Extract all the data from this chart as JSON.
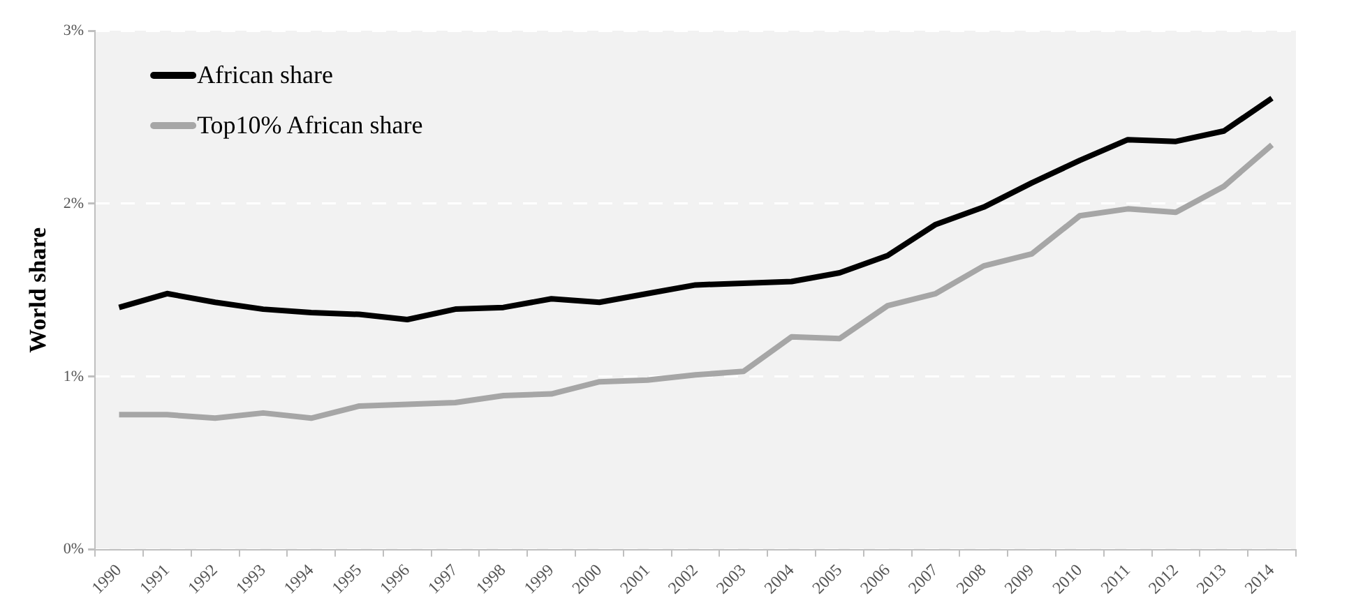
{
  "chart_data": {
    "type": "line",
    "ylabel": "World share",
    "categories": [
      "1990",
      "1991",
      "1992",
      "1993",
      "1994",
      "1995",
      "1996",
      "1997",
      "1998",
      "1999",
      "2000",
      "2001",
      "2002",
      "2003",
      "2004",
      "2005",
      "2006",
      "2007",
      "2008",
      "2009",
      "2010",
      "2011",
      "2012",
      "2013",
      "2014"
    ],
    "series": [
      {
        "name": "African share",
        "color": "#000000",
        "values": [
          1.4,
          1.48,
          1.43,
          1.39,
          1.37,
          1.36,
          1.33,
          1.39,
          1.4,
          1.45,
          1.43,
          1.48,
          1.53,
          1.54,
          1.55,
          1.6,
          1.7,
          1.88,
          1.98,
          2.12,
          2.25,
          2.37,
          2.36,
          2.42,
          2.61
        ]
      },
      {
        "name": "Top10% African share",
        "color": "#a6a6a6",
        "values": [
          0.78,
          0.78,
          0.76,
          0.79,
          0.76,
          0.83,
          0.84,
          0.85,
          0.89,
          0.9,
          0.97,
          0.98,
          1.01,
          1.03,
          1.23,
          1.22,
          1.41,
          1.48,
          1.64,
          1.71,
          1.93,
          1.97,
          1.95,
          2.1,
          2.34
        ]
      }
    ],
    "ylim": [
      0,
      3
    ],
    "yticks": [
      {
        "value": 0,
        "label": "0%"
      },
      {
        "value": 1,
        "label": "1%"
      },
      {
        "value": 2,
        "label": "2%"
      },
      {
        "value": 3,
        "label": "3%"
      }
    ],
    "grid": "y",
    "legend": "top left",
    "marker": "none",
    "line_style": "solid"
  }
}
